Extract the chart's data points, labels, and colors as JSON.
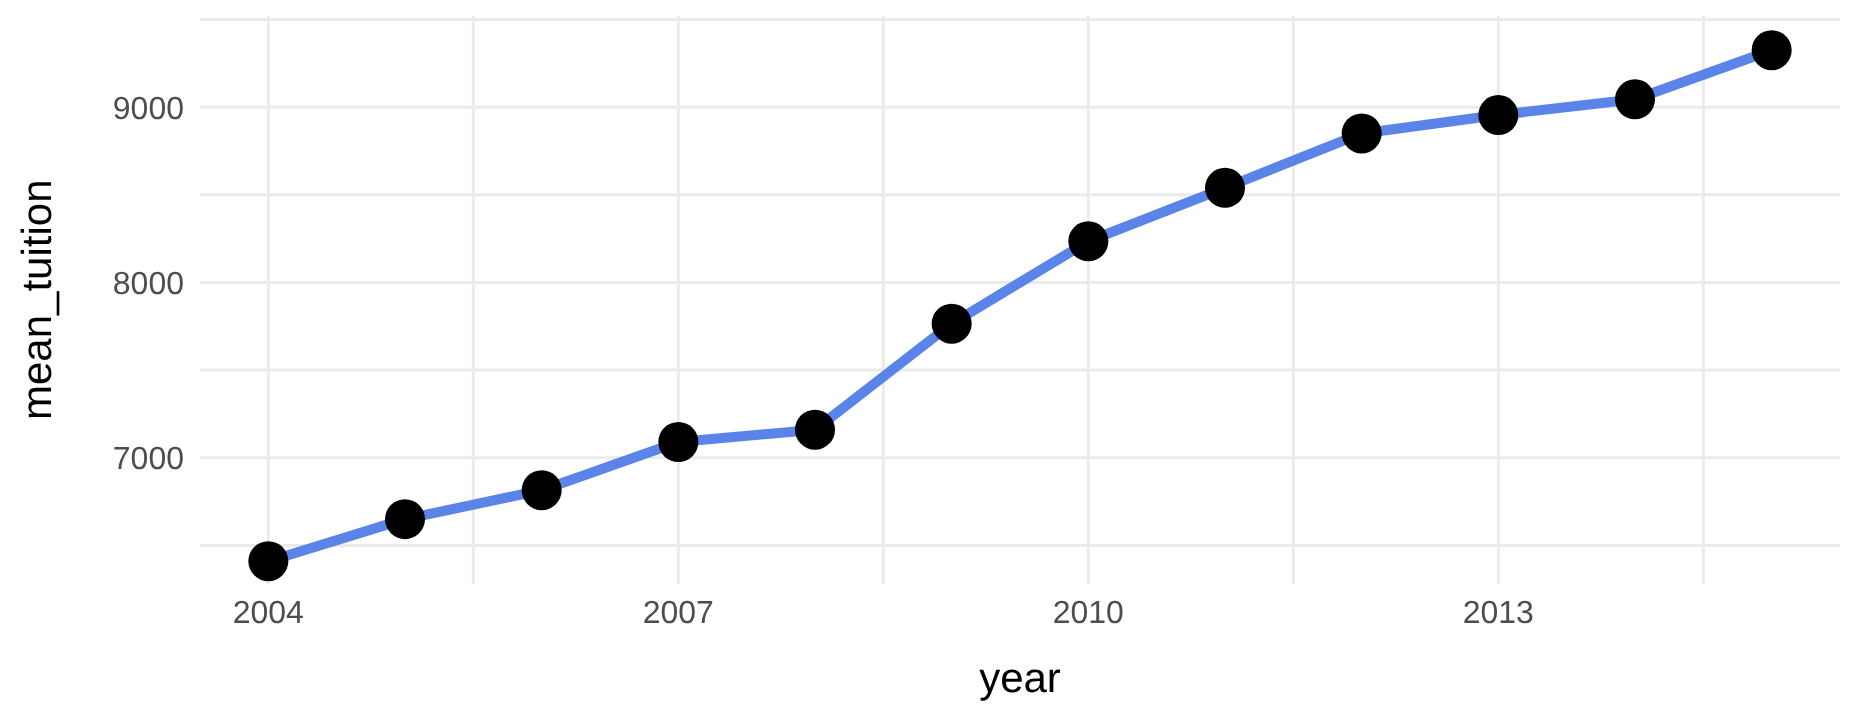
{
  "chart_data": {
    "type": "line",
    "xlabel": "year",
    "ylabel": "mean_tuition",
    "x": [
      2004,
      2005,
      2006,
      2007,
      2008,
      2009,
      2010,
      2011,
      2012,
      2013,
      2014,
      2015
    ],
    "series": [
      {
        "color": "#5b84e8",
        "values": [
          6410,
          6650,
          6815,
          7090,
          7160,
          7765,
          8235,
          8540,
          8850,
          8955,
          9045,
          9325
        ]
      }
    ],
    "xlim": [
      2003.5,
      2015.5
    ],
    "xticks": [
      2004,
      {
        "value": 2005.5,
        "label": null
      },
      2007,
      {
        "value": 2008.5,
        "label": null
      },
      2010,
      {
        "value": 2011.5,
        "label": null
      },
      2013,
      {
        "value": 2014.5,
        "label": null
      }
    ],
    "ylim": [
      6280,
      9520
    ],
    "yticks": [
      {
        "value": 6500,
        "label": null
      },
      7000,
      {
        "value": 7500,
        "label": null
      },
      8000,
      {
        "value": 8500,
        "label": null
      },
      9000,
      {
        "value": 9500,
        "label": null
      }
    ],
    "grid": true,
    "marker": "circle",
    "line_style": "solid"
  }
}
